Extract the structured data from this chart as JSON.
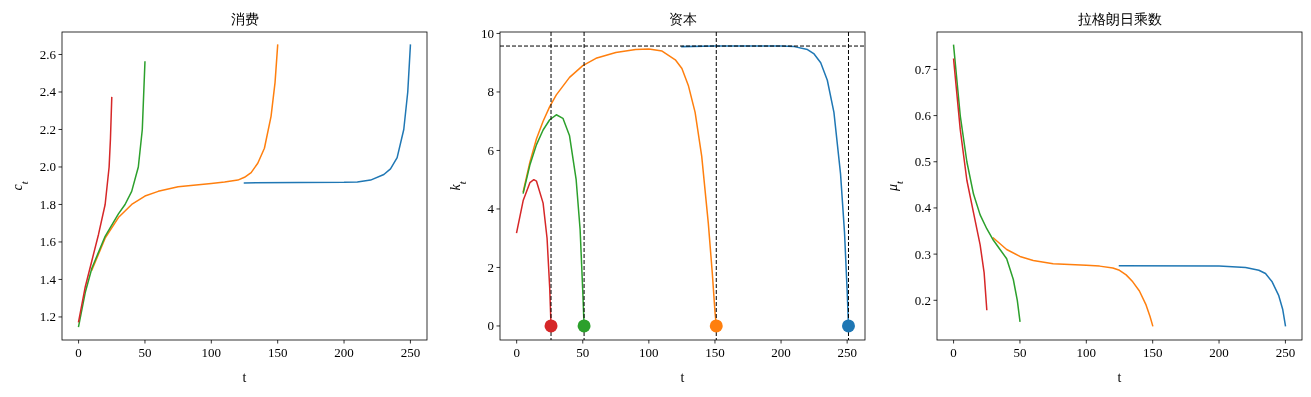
{
  "chart_data": [
    {
      "type": "line",
      "title": "消费",
      "xlabel": "t",
      "ylabel": "c$_{t}$",
      "xlim": [
        -12.5,
        262.5
      ],
      "ylim": [
        1.077,
        2.72
      ],
      "xticks": [
        0,
        50,
        100,
        150,
        200,
        250
      ],
      "yticks": [
        1.2,
        1.4,
        1.6,
        1.8,
        {
          "value": 2,
          "label": "2.0"
        },
        2.2,
        2.4,
        2.6
      ],
      "grid": false,
      "series": [
        {
          "color": "#1f77b4",
          "x": [
            125,
            200,
            210,
            220,
            230,
            235,
            240,
            245,
            248,
            250
          ],
          "values": [
            1.915,
            1.918,
            1.92,
            1.93,
            1.96,
            1.99,
            2.05,
            2.2,
            2.4,
            2.65
          ]
        },
        {
          "color": "#ff7f0e",
          "x": [
            10,
            20,
            30,
            40,
            50,
            60,
            75,
            100,
            110,
            120,
            125,
            130,
            135,
            140,
            145,
            148,
            150
          ],
          "values": [
            1.45,
            1.62,
            1.73,
            1.8,
            1.845,
            1.87,
            1.895,
            1.912,
            1.92,
            1.93,
            1.945,
            1.97,
            2.02,
            2.1,
            2.27,
            2.45,
            2.65
          ]
        },
        {
          "color": "#2ca02c",
          "x": [
            0,
            5,
            10,
            20,
            30,
            35,
            40,
            45,
            48,
            50
          ],
          "values": [
            1.15,
            1.33,
            1.46,
            1.63,
            1.75,
            1.8,
            1.87,
            2.0,
            2.2,
            2.56
          ]
        },
        {
          "color": "#d62728",
          "x": [
            0,
            5,
            10,
            15,
            20,
            23,
            24,
            25
          ],
          "values": [
            1.175,
            1.36,
            1.5,
            1.64,
            1.8,
            2.0,
            2.15,
            2.37
          ]
        }
      ]
    },
    {
      "type": "line",
      "title": "资本",
      "xlabel": "t",
      "ylabel": "k$_{t}$",
      "xlim": [
        -12.6,
        263.5
      ],
      "ylim": [
        -0.48,
        10.05
      ],
      "xticks": [
        0,
        50,
        100,
        150,
        200,
        250
      ],
      "yticks": [
        0,
        2,
        4,
        6,
        8,
        10
      ],
      "grid": false,
      "series": [
        {
          "color": "#1f77b4",
          "x": [
            125,
            150,
            200,
            210,
            220,
            225,
            230,
            235,
            240,
            245,
            248,
            250,
            251
          ],
          "values": [
            9.55,
            9.57,
            9.57,
            9.55,
            9.45,
            9.3,
            9.0,
            8.4,
            7.3,
            5.2,
            3.2,
            1.2,
            0
          ]
        },
        {
          "color": "#ff7f0e",
          "x": [
            5,
            10,
            15,
            20,
            25,
            30,
            40,
            50,
            60,
            75,
            90,
            100,
            110,
            120,
            125,
            130,
            135,
            140,
            145,
            148,
            150,
            151
          ],
          "values": [
            4.6,
            5.6,
            6.4,
            7.0,
            7.5,
            7.9,
            8.5,
            8.9,
            9.15,
            9.35,
            9.45,
            9.47,
            9.4,
            9.1,
            8.8,
            8.2,
            7.3,
            5.8,
            3.5,
            1.8,
            0.5,
            0
          ]
        },
        {
          "color": "#2ca02c",
          "x": [
            5,
            10,
            15,
            20,
            25,
            30,
            35,
            40,
            45,
            48,
            50,
            51
          ],
          "values": [
            4.55,
            5.5,
            6.2,
            6.7,
            7.05,
            7.22,
            7.1,
            6.5,
            5.0,
            3.3,
            1.2,
            0
          ]
        },
        {
          "color": "#d62728",
          "x": [
            0,
            5,
            10,
            13,
            15,
            20,
            23,
            25,
            26
          ],
          "values": [
            3.2,
            4.3,
            4.9,
            5.0,
            4.95,
            4.2,
            3.0,
            1.3,
            0
          ]
        },
        {
          "type": "scatter",
          "marker": "circle",
          "colors": [
            "#d62728",
            "#2ca02c",
            "#ff7f0e",
            "#1f77b4"
          ],
          "x": [
            26,
            51,
            151,
            251
          ],
          "values": [
            0,
            0,
            0,
            0
          ]
        }
      ],
      "ref_lines": [
        {
          "axis": "x",
          "value": 26,
          "color": "#000000",
          "line_style": "dashed"
        },
        {
          "axis": "x",
          "value": 51,
          "color": "#000000",
          "line_style": "dashed"
        },
        {
          "axis": "x",
          "value": 151,
          "color": "#000000",
          "line_style": "dashed"
        },
        {
          "axis": "x",
          "value": 251,
          "color": "#000000",
          "line_style": "dashed"
        },
        {
          "axis": "y",
          "value": 9.57,
          "color": "#000000",
          "line_style": "dashed"
        }
      ]
    },
    {
      "type": "line",
      "title": "拉格朗日乘数",
      "xlabel": "t",
      "ylabel": "μ$_{t}$",
      "xlim": [
        -12.5,
        262.5
      ],
      "ylim": [
        0.114,
        0.781
      ],
      "xticks": [
        0,
        50,
        100,
        150,
        200,
        250
      ],
      "yticks": [
        0.2,
        0.3,
        0.4,
        0.5,
        0.6,
        0.7
      ],
      "grid": false,
      "series": [
        {
          "color": "#1f77b4",
          "x": [
            125,
            200,
            220,
            230,
            235,
            240,
            245,
            248,
            250
          ],
          "values": [
            0.275,
            0.274,
            0.271,
            0.265,
            0.258,
            0.24,
            0.21,
            0.18,
            0.145
          ]
        },
        {
          "color": "#ff7f0e",
          "x": [
            30,
            40,
            50,
            60,
            75,
            100,
            110,
            120,
            125,
            130,
            135,
            140,
            145,
            148,
            150
          ],
          "values": [
            0.335,
            0.31,
            0.295,
            0.286,
            0.279,
            0.276,
            0.274,
            0.27,
            0.265,
            0.255,
            0.24,
            0.22,
            0.19,
            0.165,
            0.145
          ]
        },
        {
          "color": "#2ca02c",
          "x": [
            0,
            5,
            10,
            15,
            20,
            25,
            30,
            35,
            40,
            45,
            48,
            50
          ],
          "values": [
            0.752,
            0.6,
            0.5,
            0.43,
            0.385,
            0.355,
            0.33,
            0.31,
            0.29,
            0.245,
            0.2,
            0.155
          ]
        },
        {
          "color": "#d62728",
          "x": [
            0,
            5,
            10,
            15,
            20,
            23,
            25
          ],
          "values": [
            0.722,
            0.57,
            0.46,
            0.39,
            0.32,
            0.26,
            0.18
          ]
        }
      ]
    }
  ]
}
